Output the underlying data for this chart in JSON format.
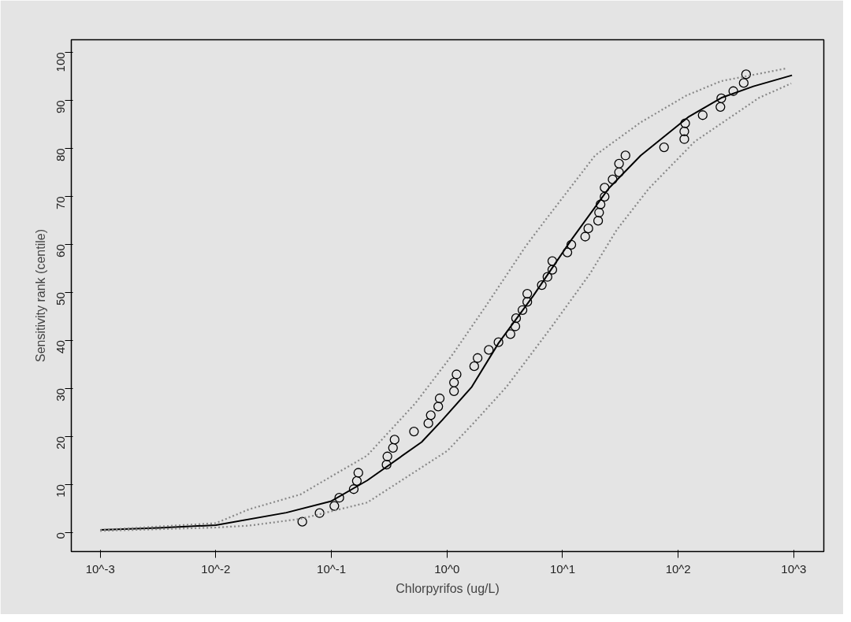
{
  "chart_data": {
    "type": "scatter",
    "xlabel": "Chlorpyrifos (ug/L)",
    "ylabel": "Sensitivity rank (centile)",
    "log": "x",
    "xlim": [
      0.000562,
      1820
    ],
    "ylim": [
      -4,
      102.6
    ],
    "xticks": [
      {
        "value": 0.001,
        "label": "10^-3"
      },
      {
        "value": 0.01,
        "label": "10^-2"
      },
      {
        "value": 0.1,
        "label": "10^-1"
      },
      {
        "value": 1,
        "label": "10^0"
      },
      {
        "value": 10,
        "label": "10^1"
      },
      {
        "value": 100,
        "label": "10^2"
      },
      {
        "value": 1000,
        "label": "10^3"
      }
    ],
    "yticks": [
      0,
      10,
      20,
      30,
      40,
      50,
      60,
      70,
      80,
      90,
      100
    ],
    "grid": false,
    "series": [
      {
        "marker": "circle",
        "color": "#000000",
        "x": [
          0.056,
          0.079,
          0.106,
          0.117,
          0.156,
          0.166,
          0.171,
          0.3,
          0.305,
          0.341,
          0.352,
          0.518,
          0.69,
          0.724,
          0.84,
          0.865,
          1.15,
          1.15,
          1.21,
          1.72,
          1.84,
          2.3,
          2.79,
          3.54,
          3.9,
          3.96,
          4.5,
          4.95,
          4.95,
          6.61,
          7.4,
          8.15,
          8.15,
          11.0,
          11.9,
          15.7,
          16.7,
          20.3,
          20.7,
          21.3,
          23.1,
          23.1,
          27.1,
          30.8,
          30.8,
          35.0,
          75.5,
          113,
          113,
          115,
          163,
          232,
          236,
          300,
          369,
          387
        ],
        "values": [
          2.2,
          4.0,
          5.5,
          7.2,
          9.0,
          10.7,
          12.4,
          14.1,
          15.8,
          17.6,
          19.3,
          21.0,
          22.7,
          24.4,
          26.2,
          27.9,
          29.4,
          31.2,
          32.9,
          34.6,
          36.3,
          38.0,
          39.6,
          41.3,
          42.9,
          44.6,
          46.3,
          48.0,
          49.7,
          51.5,
          53.2,
          54.7,
          56.5,
          58.3,
          59.9,
          61.6,
          63.3,
          64.9,
          66.6,
          68.3,
          69.9,
          71.8,
          73.5,
          75.0,
          76.8,
          78.5,
          80.2,
          81.9,
          83.5,
          85.2,
          86.9,
          88.6,
          90.4,
          91.9,
          93.6,
          95.4
        ]
      },
      {
        "type": "line",
        "line_style": "solid",
        "color": "#000000",
        "x": [
          0.001,
          0.00316,
          0.01,
          0.0407,
          0.1,
          0.204,
          0.603,
          0.912,
          1.64,
          2.79,
          5.55,
          11.8,
          25.0,
          47.4,
          124,
          236,
          448,
          966
        ],
        "values": [
          0.5,
          0.9,
          1.5,
          4.1,
          6.5,
          10.8,
          18.8,
          23.4,
          30.3,
          39.4,
          49.2,
          60.8,
          71.6,
          78.5,
          86.6,
          90.5,
          92.9,
          95.2
        ]
      },
      {
        "type": "line",
        "line_style": "dotted",
        "color": "#888888",
        "x": [
          0.001,
          0.01,
          0.0194,
          0.054,
          0.204,
          0.533,
          1.13,
          2.15,
          4.8,
          6.93,
          19.1,
          47.4,
          118,
          236,
          849
        ],
        "values": [
          0.5,
          1.9,
          4.8,
          7.9,
          16.0,
          26.9,
          37.2,
          47.0,
          59.6,
          64.7,
          78.5,
          85.4,
          91.0,
          94.0,
          96.6
        ]
      },
      {
        "type": "line",
        "line_style": "dotted",
        "color": "#888888",
        "x": [
          0.001,
          0.01,
          0.0194,
          0.054,
          0.204,
          1.01,
          1.72,
          3.27,
          7.76,
          17.3,
          29.4,
          55.7,
          139,
          500,
          951
        ],
        "values": [
          0.3,
          1.0,
          1.4,
          2.8,
          6.2,
          17.0,
          22.9,
          30.3,
          42.3,
          53.9,
          63.0,
          71.6,
          81.4,
          90.5,
          93.5
        ]
      }
    ]
  }
}
